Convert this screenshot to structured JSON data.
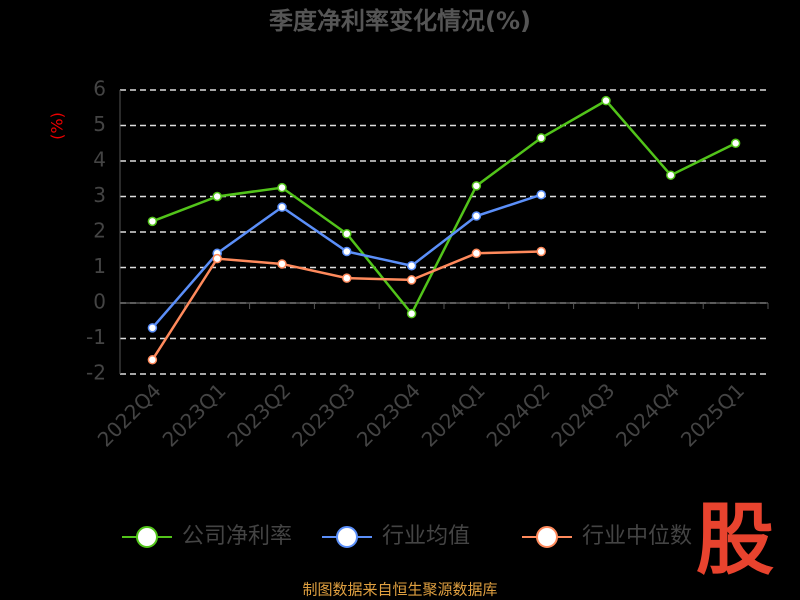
{
  "chart_data": {
    "type": "line",
    "title": "季度净利率变化情况(%)",
    "y_label": "(%)",
    "categories": [
      "2022Q4",
      "2023Q1",
      "2023Q2",
      "2023Q3",
      "2023Q4",
      "2024Q1",
      "2024Q2",
      "2024Q3",
      "2024Q4",
      "2025Q1"
    ],
    "series": [
      {
        "name": "公司净利率",
        "color": "#52c41a",
        "values": [
          2.3,
          3.0,
          3.25,
          1.95,
          -0.3,
          3.3,
          4.65,
          5.7,
          3.6,
          4.5
        ]
      },
      {
        "name": "行业均值",
        "color": "#5b8ff9",
        "values": [
          -0.7,
          1.4,
          2.7,
          1.45,
          1.05,
          2.45,
          3.05,
          null,
          null,
          null
        ]
      },
      {
        "name": "行业中位数",
        "color": "#ff8a5c",
        "values": [
          -1.6,
          1.25,
          1.1,
          0.7,
          0.65,
          1.4,
          1.45,
          null,
          null,
          null
        ]
      }
    ],
    "ylim": [
      -2,
      6
    ],
    "yticks": [
      -2,
      -1,
      0,
      1,
      2,
      3,
      4,
      5,
      6
    ],
    "grid": true,
    "source": "制图数据来自恒生聚源数据库",
    "logo": "股"
  }
}
